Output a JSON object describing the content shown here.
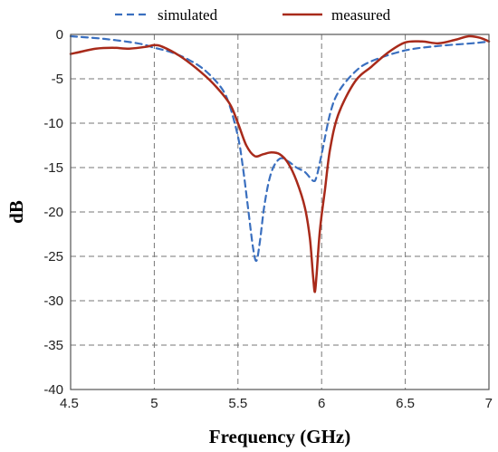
{
  "chart_data": {
    "type": "line",
    "xlabel": "Frequency (GHz)",
    "ylabel": "dB",
    "xlim": [
      4.5,
      7
    ],
    "ylim": [
      -40,
      0
    ],
    "xticks": [
      4.5,
      5,
      5.5,
      6,
      6.5,
      7
    ],
    "xtick_labels": [
      "4.5",
      "5",
      "5.5",
      "6",
      "6.5",
      "7"
    ],
    "yticks": [
      0,
      -5,
      -10,
      -15,
      -20,
      -25,
      -30,
      -35,
      -40
    ],
    "ytick_labels": [
      "0",
      "-5",
      "-10",
      "-15",
      "-20",
      "-25",
      "-30",
      "-35",
      "-40"
    ],
    "grid": true,
    "legend_position": "top",
    "series": [
      {
        "name": "simulated",
        "color": "#3a6fbf",
        "style": "dashed",
        "x": [
          4.5,
          4.7,
          4.9,
          5.0,
          5.1,
          5.2,
          5.3,
          5.4,
          5.45,
          5.5,
          5.53,
          5.56,
          5.59,
          5.61,
          5.63,
          5.66,
          5.7,
          5.75,
          5.8,
          5.85,
          5.9,
          5.95,
          5.97,
          6.0,
          6.05,
          6.1,
          6.2,
          6.3,
          6.5,
          6.7,
          6.9,
          7.0
        ],
        "y": [
          -0.2,
          -0.5,
          -1.0,
          -1.5,
          -2.0,
          -2.8,
          -4.0,
          -6.0,
          -8.0,
          -11.5,
          -15.0,
          -19.5,
          -24.0,
          -25.5,
          -23.5,
          -19.0,
          -15.5,
          -14.0,
          -14.3,
          -15.0,
          -15.5,
          -16.5,
          -16.0,
          -13.5,
          -9.0,
          -6.5,
          -4.2,
          -3.0,
          -1.8,
          -1.3,
          -1.0,
          -0.8
        ]
      },
      {
        "name": "measured",
        "color": "#a82a1a",
        "style": "solid",
        "x": [
          4.5,
          4.55,
          4.65,
          4.75,
          4.85,
          4.95,
          5.0,
          5.05,
          5.15,
          5.25,
          5.35,
          5.45,
          5.5,
          5.55,
          5.6,
          5.65,
          5.7,
          5.75,
          5.8,
          5.85,
          5.9,
          5.93,
          5.95,
          5.96,
          5.97,
          5.99,
          6.02,
          6.05,
          6.1,
          6.2,
          6.3,
          6.4,
          6.5,
          6.6,
          6.7,
          6.8,
          6.88,
          6.95,
          7.0
        ],
        "y": [
          -2.2,
          -2.0,
          -1.6,
          -1.5,
          -1.6,
          -1.4,
          -1.2,
          -1.4,
          -2.4,
          -3.8,
          -5.5,
          -7.8,
          -10.0,
          -12.5,
          -13.7,
          -13.5,
          -13.3,
          -13.5,
          -14.5,
          -16.5,
          -19.5,
          -23.0,
          -27.5,
          -29.0,
          -27.0,
          -22.0,
          -17.5,
          -13.0,
          -9.0,
          -5.3,
          -3.6,
          -2.0,
          -0.9,
          -0.8,
          -1.0,
          -0.6,
          -0.2,
          -0.4,
          -0.8
        ]
      }
    ]
  }
}
